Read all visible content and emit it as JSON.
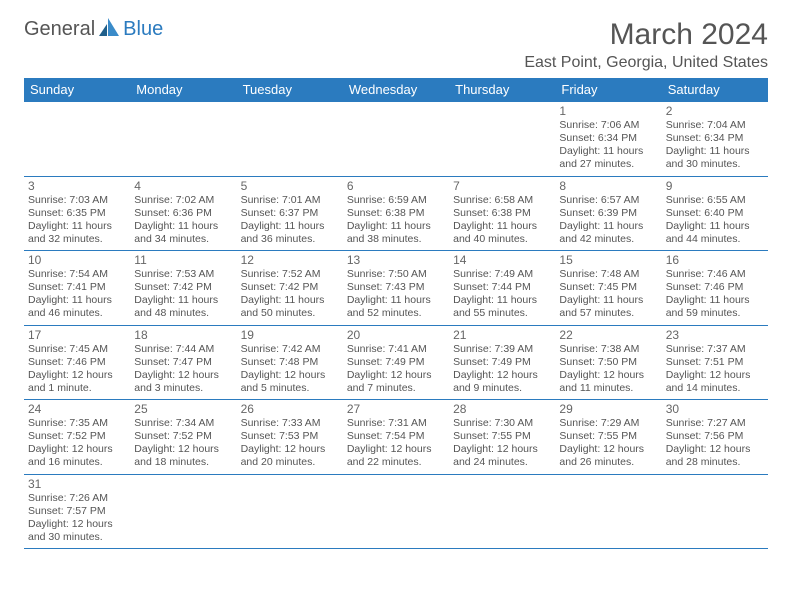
{
  "brand": {
    "general": "General",
    "blue": "Blue"
  },
  "title": "March 2024",
  "location": "East Point, Georgia, United States",
  "colors": {
    "header_bg": "#2b7bbf",
    "header_text": "#ffffff",
    "border": "#2b7bbf",
    "text": "#555555",
    "background": "#ffffff"
  },
  "typography": {
    "title_fontsize": 30,
    "location_fontsize": 16,
    "dayheader_fontsize": 13,
    "daynum_fontsize": 12,
    "cell_fontsize": 10.5
  },
  "day_headers": [
    "Sunday",
    "Monday",
    "Tuesday",
    "Wednesday",
    "Thursday",
    "Friday",
    "Saturday"
  ],
  "weeks": [
    [
      null,
      null,
      null,
      null,
      null,
      {
        "n": "1",
        "sr": "Sunrise: 7:06 AM",
        "ss": "Sunset: 6:34 PM",
        "d1": "Daylight: 11 hours",
        "d2": "and 27 minutes."
      },
      {
        "n": "2",
        "sr": "Sunrise: 7:04 AM",
        "ss": "Sunset: 6:34 PM",
        "d1": "Daylight: 11 hours",
        "d2": "and 30 minutes."
      }
    ],
    [
      {
        "n": "3",
        "sr": "Sunrise: 7:03 AM",
        "ss": "Sunset: 6:35 PM",
        "d1": "Daylight: 11 hours",
        "d2": "and 32 minutes."
      },
      {
        "n": "4",
        "sr": "Sunrise: 7:02 AM",
        "ss": "Sunset: 6:36 PM",
        "d1": "Daylight: 11 hours",
        "d2": "and 34 minutes."
      },
      {
        "n": "5",
        "sr": "Sunrise: 7:01 AM",
        "ss": "Sunset: 6:37 PM",
        "d1": "Daylight: 11 hours",
        "d2": "and 36 minutes."
      },
      {
        "n": "6",
        "sr": "Sunrise: 6:59 AM",
        "ss": "Sunset: 6:38 PM",
        "d1": "Daylight: 11 hours",
        "d2": "and 38 minutes."
      },
      {
        "n": "7",
        "sr": "Sunrise: 6:58 AM",
        "ss": "Sunset: 6:38 PM",
        "d1": "Daylight: 11 hours",
        "d2": "and 40 minutes."
      },
      {
        "n": "8",
        "sr": "Sunrise: 6:57 AM",
        "ss": "Sunset: 6:39 PM",
        "d1": "Daylight: 11 hours",
        "d2": "and 42 minutes."
      },
      {
        "n": "9",
        "sr": "Sunrise: 6:55 AM",
        "ss": "Sunset: 6:40 PM",
        "d1": "Daylight: 11 hours",
        "d2": "and 44 minutes."
      }
    ],
    [
      {
        "n": "10",
        "sr": "Sunrise: 7:54 AM",
        "ss": "Sunset: 7:41 PM",
        "d1": "Daylight: 11 hours",
        "d2": "and 46 minutes."
      },
      {
        "n": "11",
        "sr": "Sunrise: 7:53 AM",
        "ss": "Sunset: 7:42 PM",
        "d1": "Daylight: 11 hours",
        "d2": "and 48 minutes."
      },
      {
        "n": "12",
        "sr": "Sunrise: 7:52 AM",
        "ss": "Sunset: 7:42 PM",
        "d1": "Daylight: 11 hours",
        "d2": "and 50 minutes."
      },
      {
        "n": "13",
        "sr": "Sunrise: 7:50 AM",
        "ss": "Sunset: 7:43 PM",
        "d1": "Daylight: 11 hours",
        "d2": "and 52 minutes."
      },
      {
        "n": "14",
        "sr": "Sunrise: 7:49 AM",
        "ss": "Sunset: 7:44 PM",
        "d1": "Daylight: 11 hours",
        "d2": "and 55 minutes."
      },
      {
        "n": "15",
        "sr": "Sunrise: 7:48 AM",
        "ss": "Sunset: 7:45 PM",
        "d1": "Daylight: 11 hours",
        "d2": "and 57 minutes."
      },
      {
        "n": "16",
        "sr": "Sunrise: 7:46 AM",
        "ss": "Sunset: 7:46 PM",
        "d1": "Daylight: 11 hours",
        "d2": "and 59 minutes."
      }
    ],
    [
      {
        "n": "17",
        "sr": "Sunrise: 7:45 AM",
        "ss": "Sunset: 7:46 PM",
        "d1": "Daylight: 12 hours",
        "d2": "and 1 minute."
      },
      {
        "n": "18",
        "sr": "Sunrise: 7:44 AM",
        "ss": "Sunset: 7:47 PM",
        "d1": "Daylight: 12 hours",
        "d2": "and 3 minutes."
      },
      {
        "n": "19",
        "sr": "Sunrise: 7:42 AM",
        "ss": "Sunset: 7:48 PM",
        "d1": "Daylight: 12 hours",
        "d2": "and 5 minutes."
      },
      {
        "n": "20",
        "sr": "Sunrise: 7:41 AM",
        "ss": "Sunset: 7:49 PM",
        "d1": "Daylight: 12 hours",
        "d2": "and 7 minutes."
      },
      {
        "n": "21",
        "sr": "Sunrise: 7:39 AM",
        "ss": "Sunset: 7:49 PM",
        "d1": "Daylight: 12 hours",
        "d2": "and 9 minutes."
      },
      {
        "n": "22",
        "sr": "Sunrise: 7:38 AM",
        "ss": "Sunset: 7:50 PM",
        "d1": "Daylight: 12 hours",
        "d2": "and 11 minutes."
      },
      {
        "n": "23",
        "sr": "Sunrise: 7:37 AM",
        "ss": "Sunset: 7:51 PM",
        "d1": "Daylight: 12 hours",
        "d2": "and 14 minutes."
      }
    ],
    [
      {
        "n": "24",
        "sr": "Sunrise: 7:35 AM",
        "ss": "Sunset: 7:52 PM",
        "d1": "Daylight: 12 hours",
        "d2": "and 16 minutes."
      },
      {
        "n": "25",
        "sr": "Sunrise: 7:34 AM",
        "ss": "Sunset: 7:52 PM",
        "d1": "Daylight: 12 hours",
        "d2": "and 18 minutes."
      },
      {
        "n": "26",
        "sr": "Sunrise: 7:33 AM",
        "ss": "Sunset: 7:53 PM",
        "d1": "Daylight: 12 hours",
        "d2": "and 20 minutes."
      },
      {
        "n": "27",
        "sr": "Sunrise: 7:31 AM",
        "ss": "Sunset: 7:54 PM",
        "d1": "Daylight: 12 hours",
        "d2": "and 22 minutes."
      },
      {
        "n": "28",
        "sr": "Sunrise: 7:30 AM",
        "ss": "Sunset: 7:55 PM",
        "d1": "Daylight: 12 hours",
        "d2": "and 24 minutes."
      },
      {
        "n": "29",
        "sr": "Sunrise: 7:29 AM",
        "ss": "Sunset: 7:55 PM",
        "d1": "Daylight: 12 hours",
        "d2": "and 26 minutes."
      },
      {
        "n": "30",
        "sr": "Sunrise: 7:27 AM",
        "ss": "Sunset: 7:56 PM",
        "d1": "Daylight: 12 hours",
        "d2": "and 28 minutes."
      }
    ],
    [
      {
        "n": "31",
        "sr": "Sunrise: 7:26 AM",
        "ss": "Sunset: 7:57 PM",
        "d1": "Daylight: 12 hours",
        "d2": "and 30 minutes."
      },
      null,
      null,
      null,
      null,
      null,
      null
    ]
  ]
}
